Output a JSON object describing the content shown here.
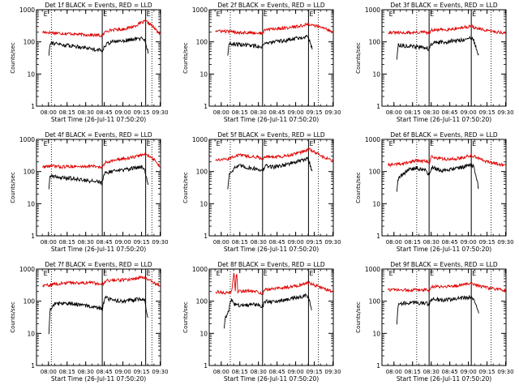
{
  "chart_data": {
    "type": "line",
    "scale": "log",
    "ylabel": "Counts/sec",
    "xlabel": "Start Time (26-Jul-11 07:50:20)",
    "x_ticks": [
      "08:00",
      "08:15",
      "08:30",
      "08:45",
      "09:00",
      "09:15",
      "09:30"
    ],
    "x_tick_minutes": [
      9.67,
      24.67,
      39.67,
      54.67,
      69.67,
      84.67,
      99.67
    ],
    "x_range_minutes": [
      0,
      100
    ],
    "y_ticks": [
      "1",
      "10",
      "100",
      "1000"
    ],
    "y_range": [
      1,
      1000
    ],
    "series_colors": {
      "events": "#000000",
      "lld": "#e00000"
    },
    "flag_label": "E",
    "panels": [
      {
        "title": "Det 1f BLACK = Events, RED = LLD",
        "dotted_x": [
          12,
          93
        ],
        "solid_x": [
          53,
          88
        ],
        "flag_x": [
          5,
          53,
          88
        ],
        "red": [
          [
            5,
            200
          ],
          [
            12,
            195
          ],
          [
            20,
            185
          ],
          [
            28,
            180
          ],
          [
            35,
            170
          ],
          [
            43,
            165
          ],
          [
            50,
            160
          ],
          [
            53,
            150
          ],
          [
            56,
            220
          ],
          [
            62,
            240
          ],
          [
            70,
            250
          ],
          [
            78,
            300
          ],
          [
            85,
            400
          ],
          [
            88,
            440
          ],
          [
            92,
            350
          ],
          [
            100,
            170
          ]
        ],
        "black": [
          [
            10,
            40
          ],
          [
            11,
            100
          ],
          [
            14,
            90
          ],
          [
            22,
            80
          ],
          [
            30,
            75
          ],
          [
            38,
            68
          ],
          [
            46,
            60
          ],
          [
            52,
            55
          ],
          [
            53,
            50
          ],
          [
            55,
            80
          ],
          [
            60,
            100
          ],
          [
            70,
            110
          ],
          [
            78,
            120
          ],
          [
            85,
            130
          ],
          [
            87,
            120
          ],
          [
            90,
            50
          ]
        ]
      },
      {
        "title": "Det 2f BLACK = Events, RED = LLD",
        "dotted_x": [
          17,
          88
        ],
        "solid_x": [
          43,
          80
        ],
        "flag_x": [
          5,
          43,
          80
        ],
        "red": [
          [
            5,
            220
          ],
          [
            15,
            210
          ],
          [
            22,
            200
          ],
          [
            30,
            195
          ],
          [
            38,
            190
          ],
          [
            43,
            185
          ],
          [
            45,
            240
          ],
          [
            55,
            260
          ],
          [
            65,
            280
          ],
          [
            75,
            320
          ],
          [
            80,
            360
          ],
          [
            85,
            320
          ],
          [
            95,
            250
          ],
          [
            100,
            200
          ]
        ],
        "black": [
          [
            15,
            40
          ],
          [
            16,
            90
          ],
          [
            22,
            85
          ],
          [
            30,
            80
          ],
          [
            38,
            75
          ],
          [
            42,
            70
          ],
          [
            44,
            90
          ],
          [
            50,
            95
          ],
          [
            60,
            110
          ],
          [
            70,
            130
          ],
          [
            78,
            150
          ],
          [
            80,
            140
          ],
          [
            83,
            60
          ]
        ]
      },
      {
        "title": "Det 3f BLACK = Events, RED = LLD",
        "dotted_x": [
          28,
          88
        ],
        "solid_x": [
          38,
          72
        ],
        "flag_x": [
          5,
          38,
          72
        ],
        "red": [
          [
            5,
            200
          ],
          [
            15,
            190
          ],
          [
            25,
            195
          ],
          [
            35,
            200
          ],
          [
            38,
            180
          ],
          [
            40,
            230
          ],
          [
            50,
            240
          ],
          [
            60,
            260
          ],
          [
            70,
            300
          ],
          [
            72,
            320
          ],
          [
            75,
            270
          ],
          [
            85,
            220
          ],
          [
            95,
            200
          ],
          [
            100,
            180
          ]
        ],
        "black": [
          [
            12,
            30
          ],
          [
            13,
            80
          ],
          [
            20,
            75
          ],
          [
            28,
            70
          ],
          [
            36,
            65
          ],
          [
            38,
            60
          ],
          [
            40,
            90
          ],
          [
            50,
            100
          ],
          [
            60,
            110
          ],
          [
            68,
            120
          ],
          [
            72,
            130
          ],
          [
            74,
            110
          ],
          [
            78,
            40
          ]
        ]
      },
      {
        "title": "Det 4f BLACK = Events, RED = LLD",
        "dotted_x": [
          12,
          93
        ],
        "solid_x": [
          53,
          88
        ],
        "flag_x": [
          5,
          53,
          88
        ],
        "red": [
          [
            5,
            140
          ],
          [
            12,
            150
          ],
          [
            20,
            140
          ],
          [
            28,
            145
          ],
          [
            35,
            140
          ],
          [
            43,
            150
          ],
          [
            50,
            140
          ],
          [
            53,
            130
          ],
          [
            56,
            200
          ],
          [
            62,
            220
          ],
          [
            70,
            250
          ],
          [
            78,
            280
          ],
          [
            85,
            330
          ],
          [
            88,
            340
          ],
          [
            92,
            300
          ],
          [
            100,
            140
          ]
        ],
        "black": [
          [
            10,
            30
          ],
          [
            11,
            80
          ],
          [
            14,
            70
          ],
          [
            22,
            65
          ],
          [
            30,
            60
          ],
          [
            38,
            55
          ],
          [
            46,
            50
          ],
          [
            52,
            48
          ],
          [
            53,
            45
          ],
          [
            55,
            90
          ],
          [
            60,
            100
          ],
          [
            70,
            110
          ],
          [
            78,
            130
          ],
          [
            85,
            140
          ],
          [
            87,
            130
          ],
          [
            90,
            40
          ]
        ]
      },
      {
        "title": "Det 5f BLACK = Events, RED = LLD",
        "dotted_x": [
          17,
          88
        ],
        "solid_x": [
          43,
          80
        ],
        "flag_x": [
          5,
          43,
          80
        ],
        "red": [
          [
            5,
            230
          ],
          [
            15,
            240
          ],
          [
            20,
            300
          ],
          [
            25,
            330
          ],
          [
            32,
            300
          ],
          [
            40,
            280
          ],
          [
            43,
            230
          ],
          [
            45,
            300
          ],
          [
            52,
            280
          ],
          [
            60,
            300
          ],
          [
            70,
            360
          ],
          [
            78,
            450
          ],
          [
            80,
            520
          ],
          [
            84,
            420
          ],
          [
            92,
            280
          ],
          [
            100,
            220
          ]
        ],
        "black": [
          [
            15,
            30
          ],
          [
            16,
            80
          ],
          [
            20,
            130
          ],
          [
            25,
            150
          ],
          [
            32,
            130
          ],
          [
            40,
            120
          ],
          [
            43,
            100
          ],
          [
            45,
            150
          ],
          [
            52,
            140
          ],
          [
            60,
            160
          ],
          [
            70,
            200
          ],
          [
            78,
            240
          ],
          [
            80,
            250
          ],
          [
            83,
            100
          ]
        ]
      },
      {
        "title": "Det 6f BLACK = Events, RED = LLD",
        "dotted_x": [
          28,
          88
        ],
        "solid_x": [
          38,
          72
        ],
        "flag_x": [
          5,
          38,
          72
        ],
        "red": [
          [
            5,
            160
          ],
          [
            12,
            170
          ],
          [
            18,
            180
          ],
          [
            25,
            210
          ],
          [
            30,
            220
          ],
          [
            36,
            210
          ],
          [
            38,
            170
          ],
          [
            40,
            300
          ],
          [
            45,
            260
          ],
          [
            55,
            240
          ],
          [
            65,
            270
          ],
          [
            72,
            330
          ],
          [
            76,
            280
          ],
          [
            85,
            200
          ],
          [
            95,
            170
          ],
          [
            100,
            150
          ]
        ],
        "black": [
          [
            12,
            25
          ],
          [
            13,
            60
          ],
          [
            18,
            90
          ],
          [
            22,
            120
          ],
          [
            28,
            130
          ],
          [
            35,
            110
          ],
          [
            38,
            80
          ],
          [
            40,
            140
          ],
          [
            48,
            110
          ],
          [
            58,
            120
          ],
          [
            66,
            140
          ],
          [
            72,
            160
          ],
          [
            74,
            140
          ],
          [
            78,
            30
          ]
        ]
      },
      {
        "title": "Det 7f BLACK = Events, RED = LLD",
        "dotted_x": [
          12,
          93
        ],
        "solid_x": [
          53,
          88
        ],
        "flag_x": [
          5,
          53,
          88
        ],
        "red": [
          [
            5,
            300
          ],
          [
            12,
            330
          ],
          [
            20,
            360
          ],
          [
            28,
            380
          ],
          [
            35,
            370
          ],
          [
            43,
            380
          ],
          [
            50,
            360
          ],
          [
            53,
            330
          ],
          [
            56,
            450
          ],
          [
            62,
            440
          ],
          [
            70,
            460
          ],
          [
            78,
            500
          ],
          [
            85,
            560
          ],
          [
            88,
            550
          ],
          [
            92,
            430
          ],
          [
            100,
            300
          ]
        ],
        "black": [
          [
            10,
            10
          ],
          [
            11,
            60
          ],
          [
            14,
            80
          ],
          [
            22,
            90
          ],
          [
            30,
            85
          ],
          [
            38,
            75
          ],
          [
            46,
            65
          ],
          [
            52,
            60
          ],
          [
            53,
            55
          ],
          [
            55,
            130
          ],
          [
            60,
            110
          ],
          [
            70,
            100
          ],
          [
            78,
            110
          ],
          [
            85,
            120
          ],
          [
            87,
            110
          ],
          [
            90,
            30
          ]
        ]
      },
      {
        "title": "Det 8f BLACK = Events, RED = LLD",
        "dotted_x": [
          17,
          88
        ],
        "solid_x": [
          43,
          80
        ],
        "flag_x": [
          5,
          43,
          80
        ],
        "red": [
          [
            5,
            200
          ],
          [
            14,
            180
          ],
          [
            18,
            190
          ],
          [
            20,
            900
          ],
          [
            21,
            200
          ],
          [
            22,
            900
          ],
          [
            23,
            200
          ],
          [
            30,
            210
          ],
          [
            38,
            200
          ],
          [
            43,
            170
          ],
          [
            45,
            230
          ],
          [
            55,
            250
          ],
          [
            65,
            280
          ],
          [
            75,
            330
          ],
          [
            80,
            380
          ],
          [
            85,
            320
          ],
          [
            95,
            230
          ],
          [
            100,
            190
          ]
        ],
        "black": [
          [
            12,
            15
          ],
          [
            13,
            30
          ],
          [
            15,
            40
          ],
          [
            17,
            90
          ],
          [
            18,
            110
          ],
          [
            20,
            80
          ],
          [
            25,
            75
          ],
          [
            32,
            80
          ],
          [
            40,
            80
          ],
          [
            43,
            70
          ],
          [
            45,
            100
          ],
          [
            52,
            95
          ],
          [
            60,
            110
          ],
          [
            70,
            130
          ],
          [
            78,
            150
          ],
          [
            80,
            140
          ],
          [
            83,
            50
          ]
        ]
      },
      {
        "title": "Det 9f BLACK = Events, RED = LLD",
        "dotted_x": [
          28,
          88
        ],
        "solid_x": [
          38,
          72
        ],
        "flag_x": [
          5,
          38,
          72
        ],
        "red": [
          [
            5,
            230
          ],
          [
            15,
            220
          ],
          [
            25,
            225
          ],
          [
            35,
            230
          ],
          [
            38,
            210
          ],
          [
            40,
            280
          ],
          [
            50,
            290
          ],
          [
            60,
            300
          ],
          [
            70,
            350
          ],
          [
            72,
            380
          ],
          [
            76,
            320
          ],
          [
            85,
            260
          ],
          [
            95,
            230
          ],
          [
            100,
            220
          ]
        ],
        "black": [
          [
            12,
            20
          ],
          [
            13,
            80
          ],
          [
            20,
            90
          ],
          [
            28,
            90
          ],
          [
            36,
            85
          ],
          [
            38,
            80
          ],
          [
            40,
            120
          ],
          [
            50,
            110
          ],
          [
            60,
            120
          ],
          [
            68,
            130
          ],
          [
            72,
            140
          ],
          [
            74,
            120
          ],
          [
            78,
            40
          ]
        ]
      }
    ]
  }
}
